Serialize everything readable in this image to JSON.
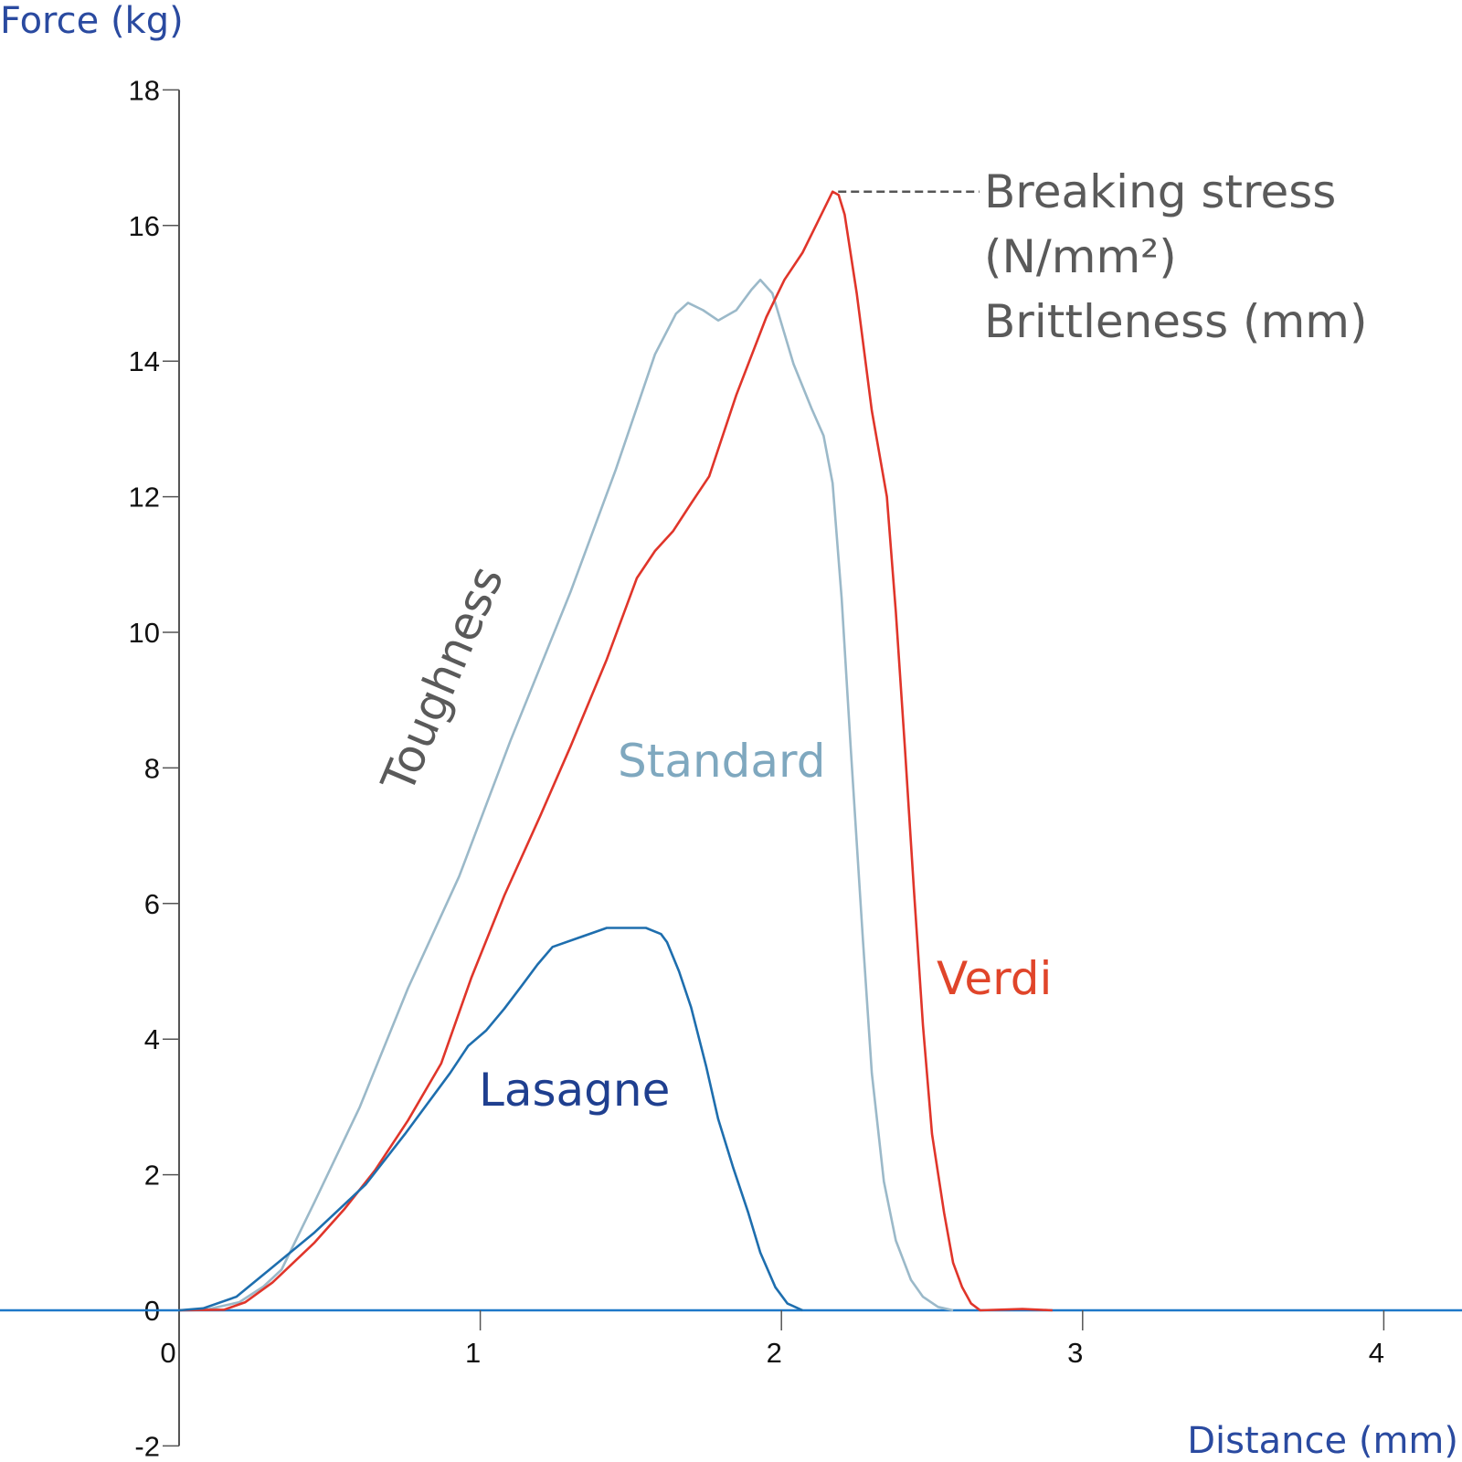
{
  "chart_data": {
    "type": "line",
    "title": "",
    "xlabel": "Distance (mm)",
    "ylabel": "Force (kg)",
    "xlim": [
      0,
      4.2
    ],
    "ylim": [
      -2,
      18
    ],
    "x_ticks": [
      0,
      1,
      2,
      3,
      4
    ],
    "y_ticks": [
      -2,
      0,
      2,
      4,
      6,
      8,
      10,
      12,
      14,
      16,
      18
    ],
    "grid": false,
    "series": [
      {
        "name": "Standard",
        "color": "#9bb9c9",
        "label_color": "#7fa8bf",
        "points": [
          [
            0,
            0
          ],
          [
            0.1,
            0.02
          ],
          [
            0.2,
            0.12
          ],
          [
            0.28,
            0.35
          ],
          [
            0.34,
            0.6
          ],
          [
            0.45,
            1.6
          ],
          [
            0.6,
            3.0
          ],
          [
            0.76,
            4.75
          ],
          [
            0.93,
            6.4
          ],
          [
            1.1,
            8.4
          ],
          [
            1.3,
            10.6
          ],
          [
            1.45,
            12.4
          ],
          [
            1.58,
            14.1
          ],
          [
            1.65,
            14.7
          ],
          [
            1.69,
            14.86
          ],
          [
            1.74,
            14.75
          ],
          [
            1.79,
            14.6
          ],
          [
            1.85,
            14.75
          ],
          [
            1.9,
            15.05
          ],
          [
            1.93,
            15.2
          ],
          [
            1.97,
            15.0
          ],
          [
            2.04,
            13.96
          ],
          [
            2.1,
            13.3
          ],
          [
            2.14,
            12.9
          ],
          [
            2.17,
            12.2
          ],
          [
            2.2,
            10.5
          ],
          [
            2.23,
            8.3
          ],
          [
            2.27,
            5.5
          ],
          [
            2.3,
            3.5
          ],
          [
            2.34,
            1.9
          ],
          [
            2.38,
            1.03
          ],
          [
            2.43,
            0.45
          ],
          [
            2.47,
            0.2
          ],
          [
            2.52,
            0.05
          ],
          [
            2.57,
            0
          ]
        ]
      },
      {
        "name": "Verdi",
        "color": "#e0352a",
        "label_color": "#e0452a",
        "points": [
          [
            0,
            0
          ],
          [
            0.15,
            0.01
          ],
          [
            0.22,
            0.12
          ],
          [
            0.31,
            0.41
          ],
          [
            0.45,
            1.0
          ],
          [
            0.55,
            1.5
          ],
          [
            0.65,
            2.06
          ],
          [
            0.76,
            2.8
          ],
          [
            0.87,
            3.64
          ],
          [
            0.97,
            4.9
          ],
          [
            1.08,
            6.12
          ],
          [
            1.2,
            7.3
          ],
          [
            1.3,
            8.32
          ],
          [
            1.42,
            9.6
          ],
          [
            1.52,
            10.8
          ],
          [
            1.58,
            11.2
          ],
          [
            1.64,
            11.49
          ],
          [
            1.7,
            11.9
          ],
          [
            1.76,
            12.3
          ],
          [
            1.85,
            13.5
          ],
          [
            1.95,
            14.65
          ],
          [
            2.01,
            15.2
          ],
          [
            2.07,
            15.6
          ],
          [
            2.12,
            16.05
          ],
          [
            2.17,
            16.5
          ],
          [
            2.19,
            16.45
          ],
          [
            2.21,
            16.16
          ],
          [
            2.25,
            15.0
          ],
          [
            2.3,
            13.27
          ],
          [
            2.35,
            12.0
          ],
          [
            2.38,
            10.3
          ],
          [
            2.41,
            8.3
          ],
          [
            2.44,
            6.2
          ],
          [
            2.47,
            4.2
          ],
          [
            2.5,
            2.6
          ],
          [
            2.54,
            1.44
          ],
          [
            2.57,
            0.7
          ],
          [
            2.6,
            0.34
          ],
          [
            2.63,
            0.1
          ],
          [
            2.66,
            0
          ],
          [
            2.8,
            0.02
          ],
          [
            2.9,
            0
          ]
        ]
      },
      {
        "name": "Lasagne",
        "color": "#1e6eae",
        "label_color": "#1f3f8f",
        "points": [
          [
            0,
            0
          ],
          [
            0.08,
            0.03
          ],
          [
            0.19,
            0.2
          ],
          [
            0.3,
            0.6
          ],
          [
            0.45,
            1.15
          ],
          [
            0.62,
            1.86
          ],
          [
            0.75,
            2.6
          ],
          [
            0.9,
            3.5
          ],
          [
            0.96,
            3.9
          ],
          [
            1.02,
            4.13
          ],
          [
            1.08,
            4.45
          ],
          [
            1.14,
            4.8
          ],
          [
            1.19,
            5.1
          ],
          [
            1.24,
            5.36
          ],
          [
            1.33,
            5.5
          ],
          [
            1.42,
            5.64
          ],
          [
            1.55,
            5.64
          ],
          [
            1.6,
            5.55
          ],
          [
            1.62,
            5.43
          ],
          [
            1.66,
            5.0
          ],
          [
            1.7,
            4.47
          ],
          [
            1.75,
            3.6
          ],
          [
            1.79,
            2.82
          ],
          [
            1.84,
            2.1
          ],
          [
            1.89,
            1.44
          ],
          [
            1.93,
            0.85
          ],
          [
            1.98,
            0.34
          ],
          [
            2.02,
            0.1
          ],
          [
            2.07,
            0
          ]
        ]
      }
    ],
    "annotations": {
      "toughness": "Toughness",
      "breaking_stress": "Breaking stress",
      "breaking_stress_unit": "(N/mm²)",
      "brittleness": "Brittleness (mm)"
    },
    "colors": {
      "zero_line": "#1e78c8",
      "axis": "#555555",
      "axis_title": "#2a4aa0",
      "annotation": "#5a5a5a"
    }
  }
}
